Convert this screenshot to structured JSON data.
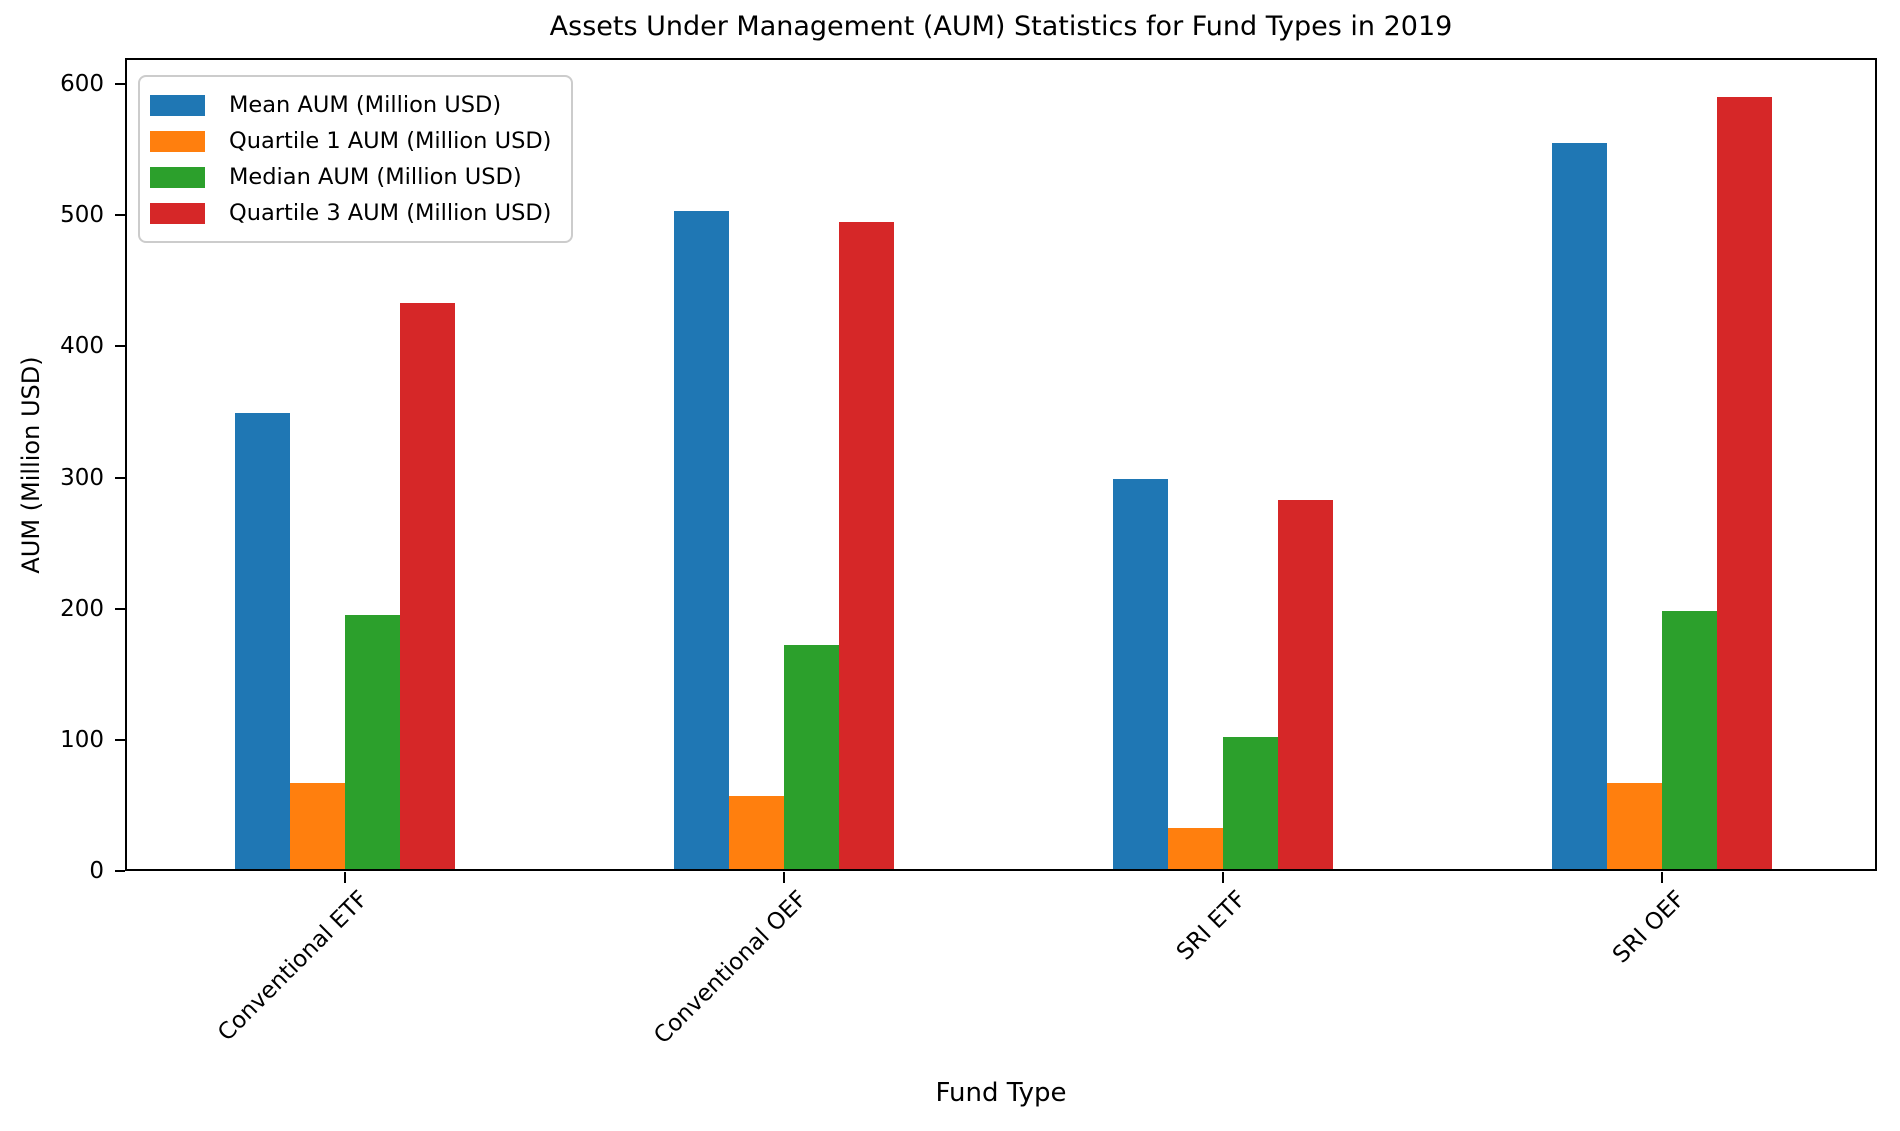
{
  "chart_data": {
    "type": "bar",
    "title": "Assets Under Management (AUM) Statistics for Fund Types in 2019",
    "xlabel": "Fund Type",
    "ylabel": "AUM (Million USD)",
    "categories": [
      "Conventional ETF",
      "Conventional OEF",
      "SRI ETF",
      "SRI OEF"
    ],
    "series": [
      {
        "name": "Mean AUM (Million USD)",
        "color": "#1f77b4",
        "values": [
          349,
          503,
          299,
          555
        ]
      },
      {
        "name": "Quartile 1 AUM (Million USD)",
        "color": "#ff7f0e",
        "values": [
          67,
          57,
          33,
          67
        ]
      },
      {
        "name": "Median AUM (Million USD)",
        "color": "#2ca02c",
        "values": [
          195,
          172,
          102,
          198
        ]
      },
      {
        "name": "Quartile 3 AUM (Million USD)",
        "color": "#d62728",
        "values": [
          433,
          495,
          283,
          590
        ]
      }
    ],
    "ylim": [
      0,
      620
    ],
    "yticks": [
      0,
      100,
      200,
      300,
      400,
      500,
      600
    ],
    "legend_position": "upper left",
    "grid": false
  }
}
